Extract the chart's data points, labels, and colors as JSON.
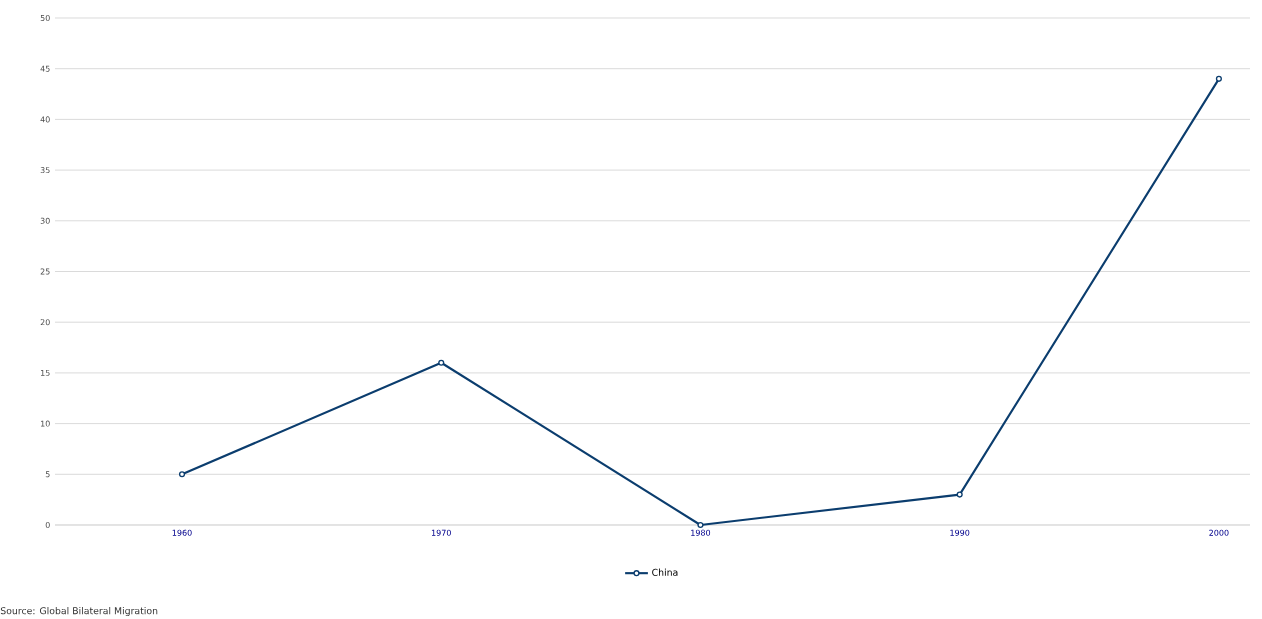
{
  "chart_data": {
    "type": "line",
    "categories": [
      "1960",
      "1970",
      "1980",
      "1990",
      "2000"
    ],
    "series": [
      {
        "name": "China",
        "color": "#0b3d6e",
        "values": [
          5,
          16,
          0,
          3,
          44
        ]
      }
    ],
    "ylim": [
      0,
      50
    ],
    "yticks": [
      0,
      5,
      10,
      15,
      20,
      25,
      30,
      35,
      40,
      45,
      50
    ],
    "grid": "y",
    "legend": "bottom",
    "marker": "circle",
    "annotations": [
      "Source: Global Bilateral Migration"
    ]
  }
}
